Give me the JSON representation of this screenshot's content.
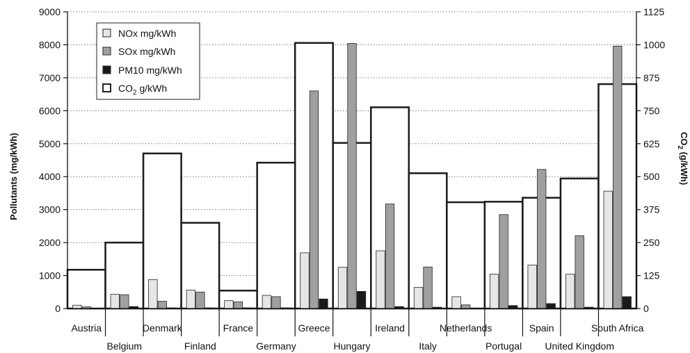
{
  "chart_data": {
    "type": "bar",
    "categories": [
      "Austria",
      "Belgium",
      "Denmark",
      "Finland",
      "France",
      "Germany",
      "Greece",
      "Hungary",
      "Ireland",
      "Italy",
      "Netherlands",
      "Portugal",
      "Spain",
      "United Kingdom",
      "South Africa"
    ],
    "series": [
      {
        "name": "NOx mg/kWh",
        "axis": "left",
        "color": "#e6e6e6",
        "values": [
          100,
          430,
          880,
          560,
          240,
          400,
          1690,
          1250,
          1750,
          640,
          360,
          1040,
          1320,
          1040,
          3560
        ]
      },
      {
        "name": "SOx mg/kWh",
        "axis": "left",
        "color": "#a0a0a0",
        "values": [
          50,
          420,
          220,
          500,
          200,
          360,
          6600,
          8040,
          3170,
          1260,
          110,
          2850,
          4220,
          2210,
          7960
        ]
      },
      {
        "name": "PM10 mg/kWh",
        "axis": "left",
        "color": "#1a1a1a",
        "values": [
          10,
          60,
          20,
          20,
          20,
          20,
          290,
          520,
          60,
          40,
          10,
          90,
          150,
          40,
          360
        ]
      },
      {
        "name_parts": [
          "CO",
          "2",
          " g/kWh"
        ],
        "axis": "right",
        "color": "#ffffff",
        "values": [
          147,
          250,
          588,
          325,
          68,
          553,
          1007,
          628,
          763,
          513,
          403,
          405,
          420,
          493,
          851
        ]
      }
    ],
    "ylabel": "Pollutants (mg/kWh)",
    "ylabel2_parts": [
      "CO",
      "2",
      " (g/kWh)"
    ],
    "ylim": [
      0,
      9000
    ],
    "yticks": [
      0,
      1000,
      2000,
      3000,
      4000,
      5000,
      6000,
      7000,
      8000,
      9000
    ],
    "ylim2": [
      0,
      1125
    ],
    "yticks2": [
      0,
      125,
      250,
      375,
      500,
      625,
      750,
      875,
      1000,
      1125
    ],
    "grid": "horizontal dotted",
    "legend_position": "top-left"
  }
}
